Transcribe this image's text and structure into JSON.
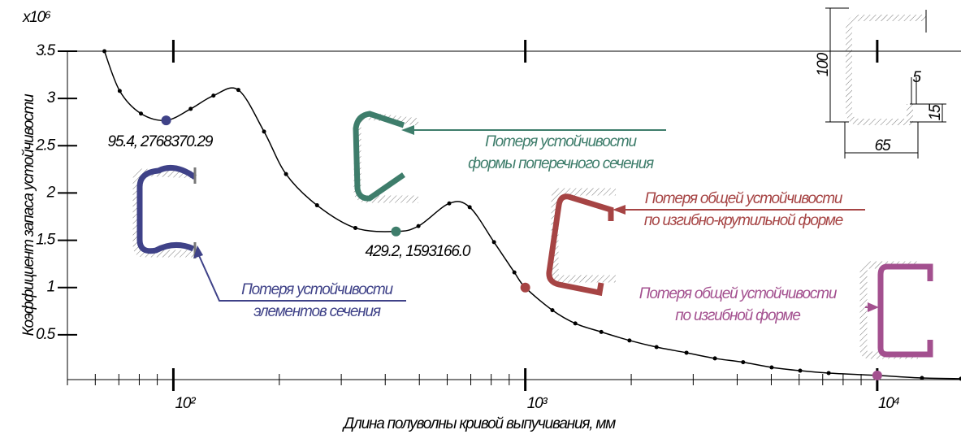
{
  "chart_data": {
    "type": "line",
    "ylabel": "Коэффициент запаса устойчивости",
    "xlabel": "Длина полуволны кривой выпучивания, мм",
    "ymultiplier": "x10⁶",
    "log_x": true,
    "xlim": [
      50,
      17300
    ],
    "ylim": [
      0,
      3.5
    ],
    "xticks": [
      {
        "value": 100,
        "label": "10²"
      },
      {
        "value": 1000,
        "label": "10³"
      },
      {
        "value": 10000,
        "label": "10⁴"
      }
    ],
    "xminorticks": [
      50,
      60,
      70,
      80,
      90,
      200,
      300,
      400,
      500,
      600,
      700,
      800,
      900,
      2000,
      3000,
      4000,
      5000,
      6000,
      7000,
      8000,
      9000
    ],
    "yticks": [
      0.5,
      1,
      1.5,
      2,
      2.5,
      3,
      3.5
    ],
    "series": [
      {
        "color": "#000000",
        "x": [
          63.7,
          70.4,
          80.9,
          95.4,
          112,
          130,
          153,
          181,
          209,
          256,
          329,
          429.2,
          497,
          608,
          695,
          815,
          931,
          1000,
          1194,
          1387,
          1644,
          1977,
          2360,
          2871,
          3458,
          4159,
          5012,
          6040,
          7278,
          10000,
          13400,
          17300
        ],
        "values": [
          3.5,
          3.08,
          2.84,
          2.76837029,
          2.89,
          3.03,
          3.09,
          2.65,
          2.2,
          1.87,
          1.63,
          1.593166,
          1.65,
          1.89,
          1.85,
          1.48,
          1.16,
          1.0,
          0.76,
          0.62,
          0.53,
          0.44,
          0.37,
          0.31,
          0.25,
          0.21,
          0.155,
          0.12,
          0.095,
          0.07,
          0.043,
          0.035
        ]
      }
    ],
    "highlights": [
      {
        "x": 95.4,
        "y": 2.76837029,
        "label": "95.4, 2768370.29",
        "color": "#3f4288"
      },
      {
        "x": 429.2,
        "y": 1.593166,
        "label": "429.2, 1593166.0",
        "color": "#3e7d6b"
      },
      {
        "x": 1000,
        "y": 1.0,
        "color": "#a64444"
      },
      {
        "x": 10000,
        "y": 0.07,
        "color": "#a3508f"
      }
    ],
    "annotations": [
      {
        "text": [
          "Потеря устойчивости",
          "элементов сечения"
        ],
        "color": "#3f4288"
      },
      {
        "text": [
          "Потеря устойчивости",
          "формы поперечного сечения"
        ],
        "color": "#3e7d6b"
      },
      {
        "text": [
          "Потеря общей устойчивости",
          "по изгибно-крутильной форме"
        ],
        "color": "#a64444"
      },
      {
        "text": [
          "Потеря общей устойчивости",
          "по изгибной форме"
        ],
        "color": "#a3508f"
      }
    ],
    "inset_labels": [
      "100",
      "5",
      "15",
      "65"
    ]
  }
}
